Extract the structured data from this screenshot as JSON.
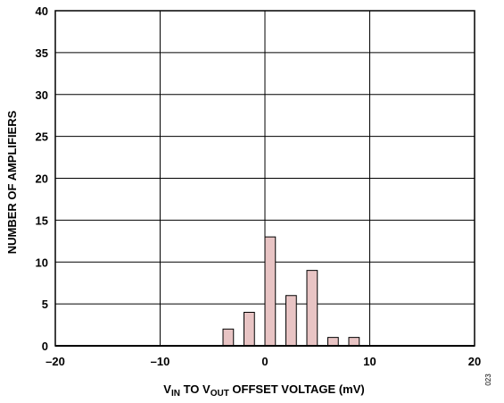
{
  "chart_data": {
    "type": "bar",
    "title": "",
    "xlabel": {
      "parts": [
        {
          "text": "V",
          "sub": false
        },
        {
          "text": "IN",
          "sub": true
        },
        {
          "text": " TO V",
          "sub": false
        },
        {
          "text": "OUT",
          "sub": true
        },
        {
          "text": " OFFSET VOLTAGE (mV)",
          "sub": false
        }
      ]
    },
    "ylabel": "NUMBER OF AMPLIFIERS",
    "xlim": [
      -20,
      20
    ],
    "ylim": [
      0,
      40
    ],
    "xticks": [
      -20,
      -10,
      0,
      10,
      20
    ],
    "xtick_labels": [
      "–20",
      "–10",
      "0",
      "10",
      "20"
    ],
    "yticks": [
      0,
      5,
      10,
      15,
      20,
      25,
      30,
      35,
      40
    ],
    "ytick_labels": [
      "0",
      "5",
      "10",
      "15",
      "20",
      "25",
      "30",
      "35",
      "40"
    ],
    "grid": true,
    "bar_width": 1,
    "bars": [
      {
        "x": -3.5,
        "value": 2
      },
      {
        "x": -1.5,
        "value": 4
      },
      {
        "x": 0.5,
        "value": 13
      },
      {
        "x": 2.5,
        "value": 6
      },
      {
        "x": 4.5,
        "value": 9
      },
      {
        "x": 6.5,
        "value": 1
      },
      {
        "x": 8.5,
        "value": 1
      }
    ],
    "figure_id": "023",
    "colors": {
      "bar_fill": "#e8c4c4",
      "bar_stroke": "#000000",
      "grid": "#000000",
      "background": "#ffffff"
    }
  }
}
